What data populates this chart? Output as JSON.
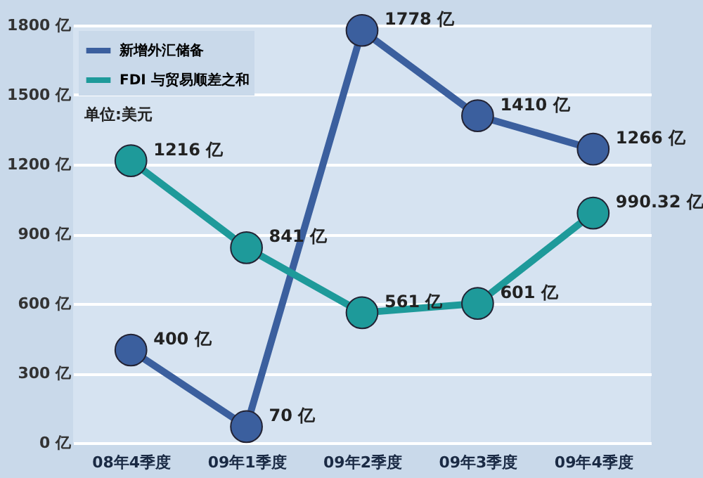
{
  "chart_data": {
    "type": "line",
    "categories": [
      "08年4季度",
      "09年1季度",
      "09年2季度",
      "09年3季度",
      "09年4季度"
    ],
    "series": [
      {
        "name": "新增外汇储备",
        "color": "#3b5f9e",
        "values": [
          400,
          70,
          1778,
          1410,
          1266
        ],
        "value_labels": [
          "400 亿",
          "70 亿",
          "1778 亿",
          "1410 亿",
          "1266 亿"
        ]
      },
      {
        "name": "FDI 与贸易顺差之和",
        "color": "#1e9a9a",
        "values": [
          1216,
          841,
          561,
          601,
          990.32
        ],
        "value_labels": [
          "1216 亿",
          "841 亿",
          "561 亿",
          "601 亿",
          "990.32 亿"
        ]
      }
    ],
    "ylim": [
      0,
      1800
    ],
    "yticks": [
      {
        "value": 0,
        "label": "0 亿"
      },
      {
        "value": 300,
        "label": "300 亿"
      },
      {
        "value": 600,
        "label": "600 亿"
      },
      {
        "value": 900,
        "label": "900 亿"
      },
      {
        "value": 1200,
        "label": "1200 亿"
      },
      {
        "value": 1500,
        "label": "1500 亿"
      },
      {
        "value": 1800,
        "label": "1800 亿"
      }
    ],
    "annotations": [
      "单位:美元"
    ],
    "grid": "y",
    "legend": "top left",
    "marker": "circle",
    "line_style": "solid"
  }
}
